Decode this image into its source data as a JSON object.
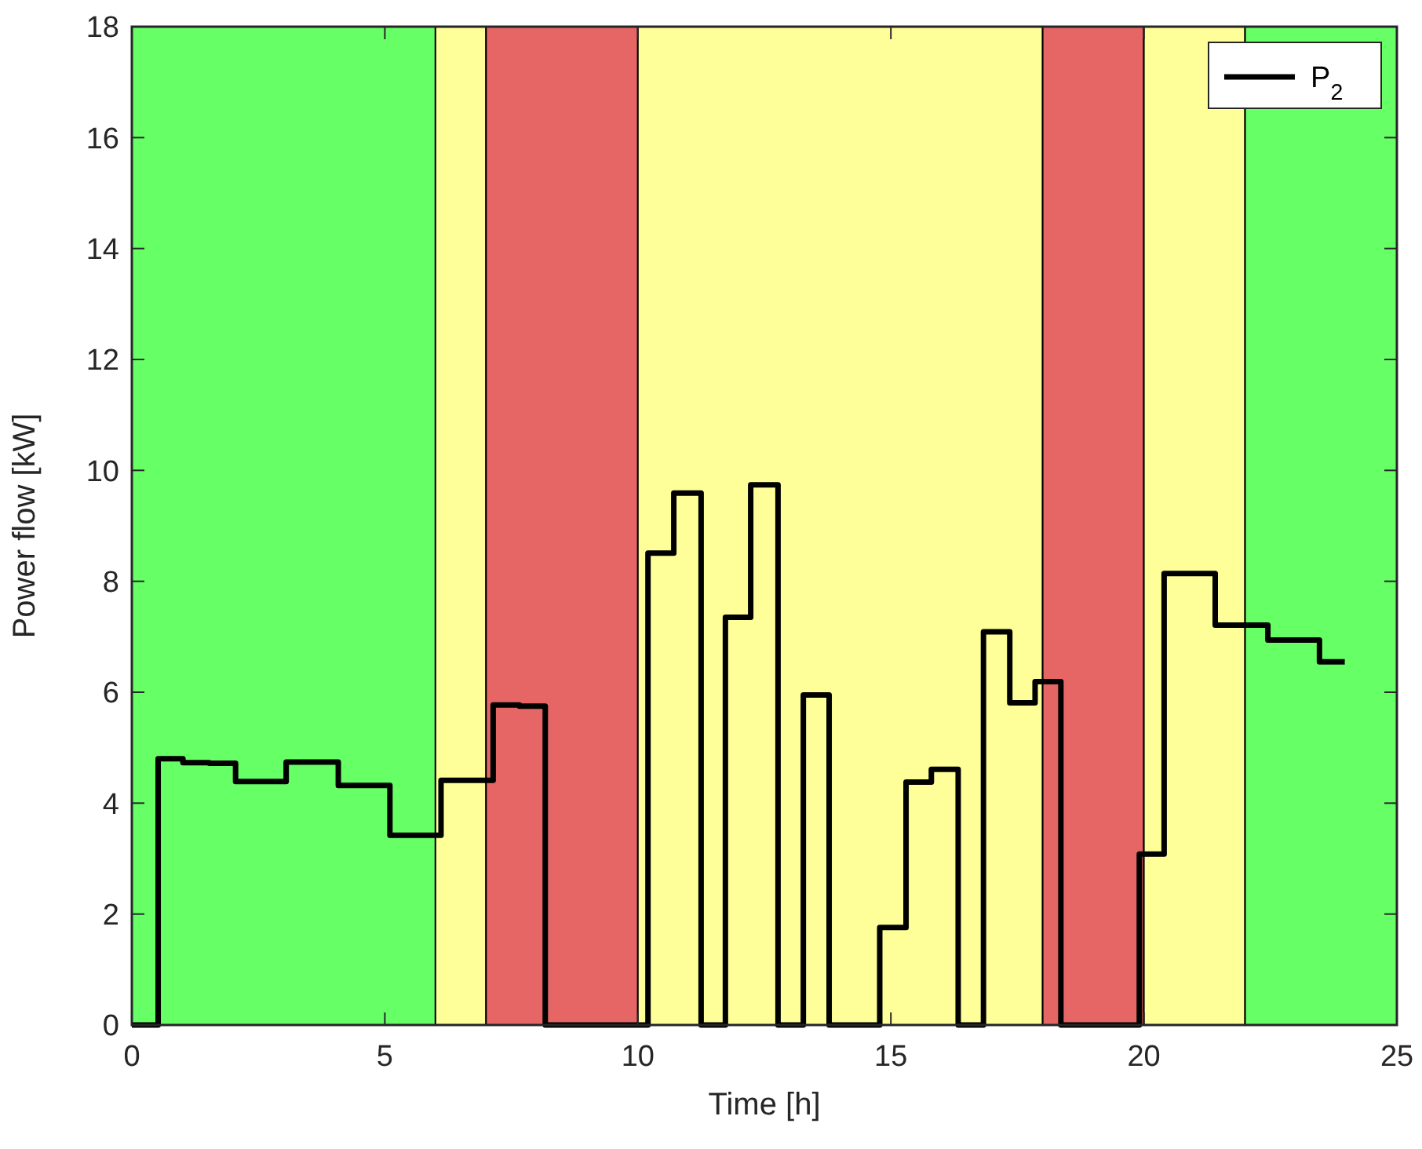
{
  "chart_data": {
    "type": "step",
    "xlabel": "Time [h]",
    "ylabel": "Power flow [kW]",
    "xlim": [
      0,
      25
    ],
    "ylim": [
      0,
      18
    ],
    "xticks": [
      0,
      5,
      10,
      15,
      20,
      25
    ],
    "yticks": [
      0,
      2,
      4,
      6,
      8,
      10,
      12,
      14,
      16,
      18
    ],
    "grid": false,
    "legend": "top right",
    "bands": [
      {
        "axis": "x",
        "from": 0,
        "to": 6,
        "color": "#66ff66"
      },
      {
        "axis": "x",
        "from": 6,
        "to": 7,
        "color": "#ffff99"
      },
      {
        "axis": "x",
        "from": 7,
        "to": 10,
        "color": "#e66666"
      },
      {
        "axis": "x",
        "from": 10,
        "to": 18,
        "color": "#ffff99"
      },
      {
        "axis": "x",
        "from": 18,
        "to": 20,
        "color": "#e66666"
      },
      {
        "axis": "x",
        "from": 20,
        "to": 22,
        "color": "#ffff99"
      },
      {
        "axis": "x",
        "from": 22,
        "to": 25,
        "color": "#66ff66"
      }
    ],
    "series": [
      {
        "name": "P$_{2}$",
        "color": "#000000",
        "x": [
          0,
          0.52,
          1.01,
          1.53,
          2.05,
          2.56,
          3.05,
          3.55,
          4.08,
          4.58,
          5.1,
          5.6,
          6.11,
          6.6,
          7.14,
          7.66,
          8.17,
          10.2,
          10.71,
          11.25,
          11.73,
          12.23,
          12.77,
          13.27,
          13.78,
          14.78,
          15.3,
          15.8,
          16.33,
          16.83,
          17.35,
          17.85,
          18.36,
          19.91,
          20.4,
          21.41,
          22.45,
          23.47,
          23.97
        ],
        "values": [
          0,
          4.8,
          4.73,
          4.72,
          4.39,
          4.39,
          4.74,
          4.74,
          4.32,
          4.32,
          3.42,
          3.42,
          4.41,
          4.41,
          5.77,
          5.75,
          0,
          8.51,
          9.59,
          0,
          7.35,
          9.74,
          0,
          5.95,
          0,
          1.76,
          4.38,
          4.61,
          0,
          7.09,
          5.81,
          6.19,
          0,
          3.08,
          8.14,
          7.21,
          6.94,
          6.55,
          6.55
        ]
      }
    ]
  }
}
